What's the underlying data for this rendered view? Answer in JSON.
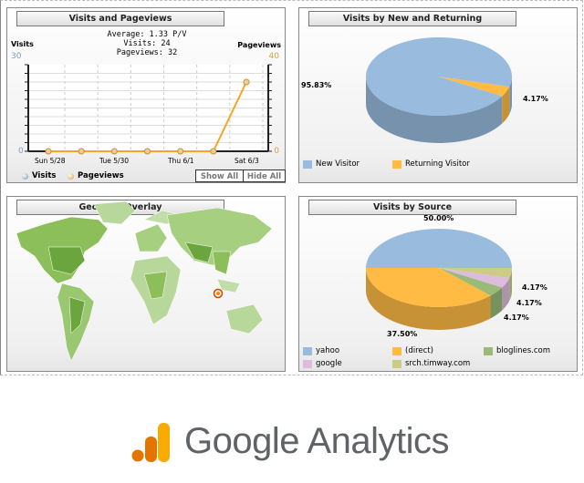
{
  "visits_pageviews": {
    "title": "Visits and Pageviews",
    "average": "Average: 1.33 P/V",
    "visits": "Visits: 24",
    "pageviews": "Pageviews: 32",
    "left_axis_label": "Visits",
    "left_max": "30",
    "left_min": "0",
    "right_axis_label": "Pageviews",
    "right_max": "40",
    "right_min": "0",
    "x_labels": [
      "Sun 5/28",
      "Tue 5/30",
      "Thu 6/1",
      "Sat 6/3"
    ],
    "legend": [
      "Visits",
      "Pageviews"
    ],
    "show_all": "Show All",
    "hide_all": "Hide All",
    "chart_data": {
      "type": "line",
      "x": [
        "5/28",
        "5/29",
        "5/30",
        "5/31",
        "6/1",
        "6/2",
        "6/3"
      ],
      "series": [
        {
          "name": "Pageviews",
          "values": [
            0,
            0,
            0,
            0,
            0,
            0,
            32
          ],
          "color": "#f5a623"
        },
        {
          "name": "Visits",
          "values": [
            0,
            0,
            0,
            0,
            0,
            0,
            24
          ],
          "color": "#7a9cc6"
        }
      ],
      "ylim_left": [
        0,
        30
      ],
      "ylim_right": [
        0,
        40
      ],
      "grid": true
    }
  },
  "new_returning": {
    "title": "Visits by New and Returning",
    "chart_data": {
      "type": "pie",
      "slices": [
        {
          "name": "New Visitor",
          "value": 95.83,
          "label": "95.83%",
          "color": "#99bbdd"
        },
        {
          "name": "Returning Visitor",
          "value": 4.17,
          "label": "4.17%",
          "color": "#ffbb44"
        }
      ]
    }
  },
  "geo": {
    "title": "Geo Map Overlay"
  },
  "source": {
    "title": "Visits by Source",
    "chart_data": {
      "type": "pie",
      "slices": [
        {
          "name": "yahoo",
          "value": 50.0,
          "label": "50.00%",
          "color": "#99bbdd"
        },
        {
          "name": "srch.timway.com",
          "value": 4.17,
          "label": "4.17%",
          "color": "#cccc88"
        },
        {
          "name": "google",
          "value": 4.17,
          "label": "4.17%",
          "color": "#ddbbdd"
        },
        {
          "name": "bloglines.com",
          "value": 4.17,
          "label": "4.17%",
          "color": "#99bb77"
        },
        {
          "name": "(direct)",
          "value": 37.5,
          "label": "37.50%",
          "color": "#ffbb44"
        }
      ]
    }
  },
  "logo": {
    "text": "Google Analytics"
  }
}
